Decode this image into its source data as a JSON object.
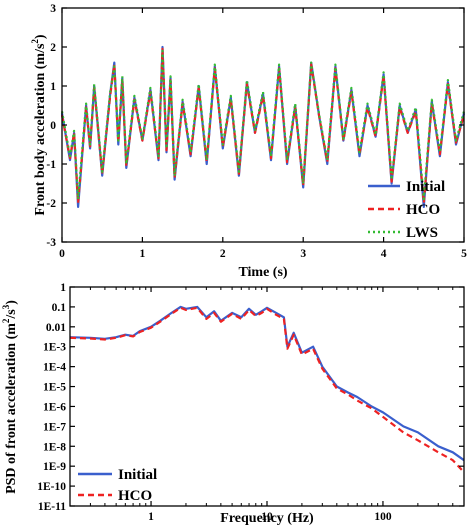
{
  "chart_data": [
    {
      "type": "line",
      "xlabel": "Time (s)",
      "ylabel": "Front body acceleration (m/s",
      "ylabel_sup": "2",
      "ylabel_end": ")",
      "xlim": [
        0,
        5
      ],
      "ylim": [
        -3,
        3
      ],
      "x_ticks": [
        "0",
        "1",
        "2",
        "3",
        "4",
        "5"
      ],
      "y_ticks": [
        "-3",
        "-2",
        "-1",
        "0",
        "1",
        "2",
        "3"
      ],
      "legend_position": "lower-right",
      "x": [
        0.0,
        0.1,
        0.15,
        0.2,
        0.3,
        0.35,
        0.4,
        0.5,
        0.6,
        0.65,
        0.7,
        0.75,
        0.8,
        0.9,
        1.0,
        1.1,
        1.2,
        1.25,
        1.3,
        1.35,
        1.4,
        1.5,
        1.6,
        1.7,
        1.8,
        1.9,
        2.0,
        2.1,
        2.2,
        2.3,
        2.4,
        2.5,
        2.6,
        2.7,
        2.8,
        2.9,
        3.0,
        3.1,
        3.2,
        3.3,
        3.4,
        3.5,
        3.6,
        3.7,
        3.8,
        3.9,
        4.0,
        4.1,
        4.2,
        4.3,
        4.4,
        4.5,
        4.6,
        4.7,
        4.8,
        4.9,
        5.0
      ],
      "series": [
        {
          "name": "Initial",
          "color": "#3a5fcd",
          "dash": "",
          "values": [
            0.3,
            -0.9,
            -0.2,
            -2.1,
            0.5,
            -0.6,
            1.0,
            -1.3,
            0.8,
            1.6,
            -0.5,
            1.2,
            -1.1,
            0.7,
            -0.4,
            0.9,
            -0.9,
            2.0,
            -0.7,
            1.2,
            -1.4,
            0.6,
            -0.8,
            1.0,
            -1.0,
            1.5,
            -0.6,
            0.7,
            -1.3,
            1.1,
            -0.2,
            0.8,
            -0.9,
            1.5,
            -1.0,
            0.5,
            -1.6,
            1.6,
            0.2,
            -1.0,
            1.5,
            -0.4,
            0.9,
            -0.8,
            0.5,
            -0.3,
            1.3,
            -1.5,
            0.5,
            -0.2,
            0.4,
            -2.1,
            0.6,
            -0.8,
            1.1,
            -0.5,
            0.3
          ]
        },
        {
          "name": "HCO",
          "color": "#ee2222",
          "dash": "6,4",
          "values": [
            0.25,
            -0.85,
            -0.2,
            -2.0,
            0.45,
            -0.55,
            0.95,
            -1.25,
            0.75,
            1.55,
            -0.45,
            1.15,
            -1.05,
            0.65,
            -0.4,
            0.85,
            -0.85,
            1.95,
            -0.65,
            1.15,
            -1.35,
            0.55,
            -0.75,
            0.95,
            -0.95,
            1.45,
            -0.55,
            0.65,
            -1.25,
            1.05,
            -0.2,
            0.75,
            -0.85,
            1.45,
            -0.95,
            0.45,
            -1.55,
            1.55,
            0.2,
            -0.95,
            1.45,
            -0.4,
            0.85,
            -0.75,
            0.45,
            -0.3,
            1.25,
            -1.45,
            0.45,
            -0.2,
            0.35,
            -2.0,
            0.55,
            -0.75,
            1.05,
            -0.45,
            0.25
          ]
        },
        {
          "name": "LWS",
          "color": "#33bb33",
          "dash": "2,3",
          "values": [
            0.35,
            -0.8,
            -0.15,
            -1.9,
            0.55,
            -0.5,
            1.05,
            -1.2,
            0.85,
            1.5,
            -0.4,
            1.25,
            -1.0,
            0.75,
            -0.35,
            0.95,
            -0.8,
            1.9,
            -0.6,
            1.25,
            -1.3,
            0.65,
            -0.7,
            1.05,
            -0.9,
            1.55,
            -0.5,
            0.75,
            -1.2,
            1.15,
            -0.15,
            0.85,
            -0.8,
            1.55,
            -0.9,
            0.55,
            -1.5,
            1.6,
            0.25,
            -0.9,
            1.55,
            -0.35,
            0.95,
            -0.7,
            0.55,
            -0.25,
            1.35,
            -1.4,
            0.55,
            -0.15,
            0.45,
            -1.9,
            0.65,
            -0.7,
            1.15,
            -0.4,
            0.35
          ]
        }
      ]
    },
    {
      "type": "line",
      "xlabel": "Frequency (Hz)",
      "ylabel": "PSD of front acceleration (m",
      "ylabel_sup1": "2",
      "ylabel_mid": "/s",
      "ylabel_sup2": "3",
      "ylabel_end": ")",
      "x_scale": "log",
      "y_scale": "log",
      "xlim": [
        0.2,
        500
      ],
      "ylim": [
        1e-11,
        1
      ],
      "x_ticks": [
        {
          "v": 1,
          "label": "1"
        },
        {
          "v": 10,
          "label": "10"
        },
        {
          "v": 100,
          "label": "100"
        }
      ],
      "y_ticks": [
        {
          "v": 1,
          "label": "1"
        },
        {
          "v": 0.1,
          "label": "0.1"
        },
        {
          "v": 0.01,
          "label": "0.01"
        },
        {
          "v": 0.001,
          "label": "1E-3"
        },
        {
          "v": 0.0001,
          "label": "1E-4"
        },
        {
          "v": 1e-05,
          "label": "1E-5"
        },
        {
          "v": 1e-06,
          "label": "1E-6"
        },
        {
          "v": 1e-07,
          "label": "1E-7"
        },
        {
          "v": 1e-08,
          "label": "1E-8"
        },
        {
          "v": 1e-09,
          "label": "1E-9"
        },
        {
          "v": 1e-10,
          "label": "1E-10"
        },
        {
          "v": 1e-11,
          "label": "1E-11"
        }
      ],
      "legend_position": "lower-left",
      "x": [
        0.2,
        0.3,
        0.4,
        0.5,
        0.6,
        0.7,
        0.8,
        1.0,
        1.2,
        1.5,
        1.8,
        2.0,
        2.5,
        3.0,
        3.5,
        4.0,
        5.0,
        6.0,
        7.0,
        8.0,
        9.0,
        10,
        12,
        14,
        15,
        17,
        20,
        25,
        30,
        40,
        50,
        60,
        80,
        100,
        150,
        200,
        300,
        400,
        500
      ],
      "series": [
        {
          "name": "Initial",
          "color": "#3a5fcd",
          "dash": "",
          "values": [
            0.003,
            0.0028,
            0.0025,
            0.003,
            0.004,
            0.0035,
            0.006,
            0.01,
            0.02,
            0.05,
            0.1,
            0.08,
            0.1,
            0.03,
            0.06,
            0.02,
            0.05,
            0.03,
            0.08,
            0.04,
            0.06,
            0.09,
            0.05,
            0.03,
            0.001,
            0.005,
            0.0005,
            0.001,
            0.0001,
            1e-05,
            5e-06,
            3e-06,
            1e-06,
            5e-07,
            1e-07,
            5e-08,
            1e-08,
            5e-09,
            2e-09
          ]
        },
        {
          "name": "HCO",
          "color": "#ee2222",
          "dash": "6,4",
          "values": [
            0.0028,
            0.0026,
            0.0023,
            0.0028,
            0.0038,
            0.0033,
            0.0055,
            0.009,
            0.018,
            0.045,
            0.09,
            0.07,
            0.09,
            0.025,
            0.05,
            0.018,
            0.045,
            0.025,
            0.07,
            0.035,
            0.05,
            0.08,
            0.04,
            0.025,
            0.0008,
            0.004,
            0.0004,
            0.0008,
            8e-05,
            8e-06,
            4e-06,
            2e-06,
            8e-07,
            3e-07,
            5e-08,
            2e-08,
            5e-09,
            2e-09,
            5e-10
          ]
        }
      ]
    }
  ]
}
